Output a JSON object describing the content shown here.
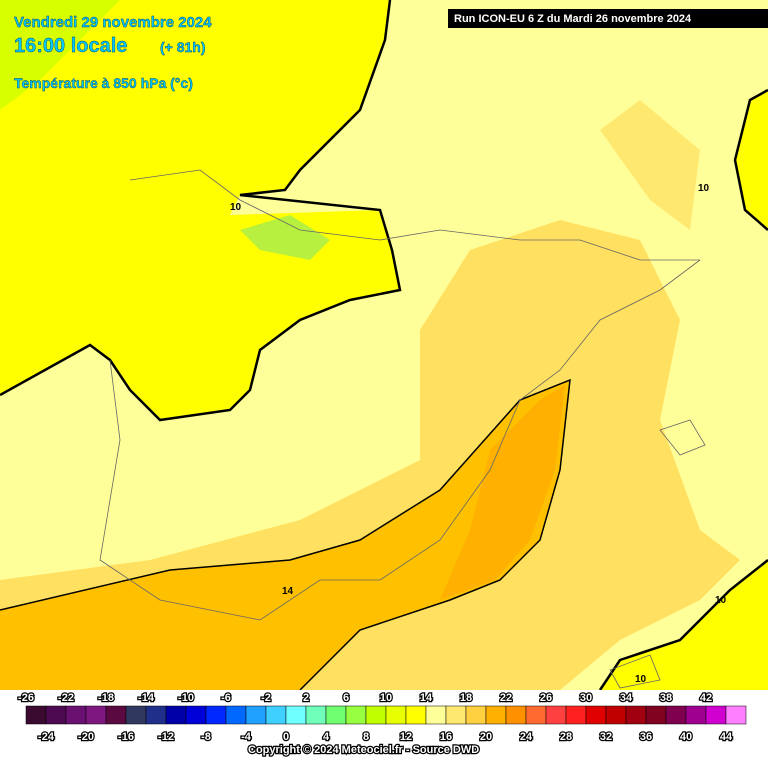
{
  "header": {
    "date": "Vendredi 29 novembre 2024",
    "time": "16:00 locale",
    "lead": "(+ 81h)",
    "parameter": "Température à 850 hPa (°c)",
    "run": "Run ICON-EU 6 Z du Mardi 26 novembre 2024"
  },
  "contour_labels": [
    "10",
    "14",
    "10",
    "10",
    "10"
  ],
  "legend": {
    "ticks": [
      -26,
      -24,
      -22,
      -20,
      -18,
      -16,
      -14,
      -12,
      -10,
      -8,
      -6,
      -4,
      -2,
      0,
      2,
      4,
      6,
      8,
      10,
      12,
      14,
      16,
      18,
      20,
      22,
      24,
      26,
      28,
      30,
      32,
      34,
      36,
      38,
      40,
      42,
      44
    ],
    "colors": [
      "#3a0a30",
      "#4e0a50",
      "#6a1070",
      "#7e1880",
      "#5a0a40",
      "#303860",
      "#20308a",
      "#0000a8",
      "#0000d8",
      "#0028ff",
      "#0068ff",
      "#20a0ff",
      "#40d0ff",
      "#70ffff",
      "#70ffb8",
      "#70ff70",
      "#98ff40",
      "#c0ff00",
      "#e8ff00",
      "#ffff00",
      "#ffff99",
      "#ffe870",
      "#ffd040",
      "#ffb000",
      "#ff9000",
      "#ff6a30",
      "#ff4040",
      "#ff2020",
      "#e00000",
      "#c00000",
      "#a00010",
      "#800020",
      "#800050",
      "#a00090",
      "#d000d0",
      "#ff80ff"
    ]
  },
  "footer": {
    "copyright": "Copyright © 2024 Meteociel.fr - Source DWD"
  }
}
